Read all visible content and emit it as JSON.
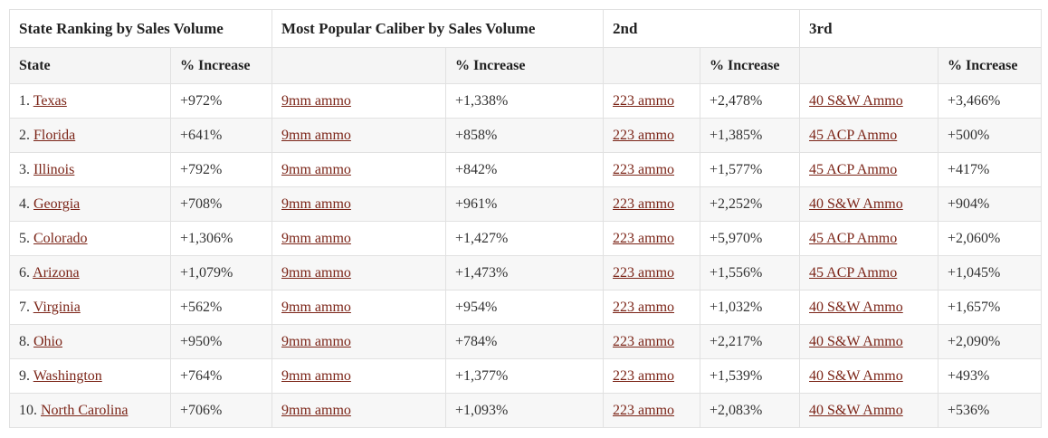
{
  "chart_data": {
    "type": "table",
    "group_headers": [
      {
        "label": "State Ranking by Sales Volume",
        "span": 2
      },
      {
        "label": "Most Popular Caliber by Sales Volume",
        "span": 2
      },
      {
        "label": "2nd",
        "span": 2
      },
      {
        "label": "3rd",
        "span": 2
      }
    ],
    "sub_headers": [
      "State",
      "% Increase",
      "",
      "% Increase",
      "",
      "% Increase",
      "",
      "% Increase"
    ],
    "rows": [
      {
        "rank": "1.",
        "state": "Texas",
        "state_increase": "+972%",
        "caliber1": "9mm ammo",
        "caliber1_increase": "+1,338%",
        "caliber2": "223 ammo",
        "caliber2_increase": "+2,478%",
        "caliber3": "40 S&W Ammo",
        "caliber3_increase": "+3,466%"
      },
      {
        "rank": "2.",
        "state": "Florida",
        "state_increase": "+641%",
        "caliber1": "9mm ammo",
        "caliber1_increase": "+858%",
        "caliber2": "223 ammo",
        "caliber2_increase": "+1,385%",
        "caliber3": "45 ACP Ammo",
        "caliber3_increase": "+500%"
      },
      {
        "rank": "3.",
        "state": "Illinois",
        "state_increase": "+792%",
        "caliber1": "9mm ammo",
        "caliber1_increase": "+842%",
        "caliber2": "223 ammo",
        "caliber2_increase": "+1,577%",
        "caliber3": "45 ACP Ammo",
        "caliber3_increase": "+417%"
      },
      {
        "rank": "4.",
        "state": "Georgia",
        "state_increase": "+708%",
        "caliber1": "9mm ammo",
        "caliber1_increase": "+961%",
        "caliber2": "223 ammo",
        "caliber2_increase": "+2,252%",
        "caliber3": "40 S&W Ammo",
        "caliber3_increase": "+904%"
      },
      {
        "rank": "5.",
        "state": "Colorado",
        "state_increase": "+1,306%",
        "caliber1": "9mm ammo",
        "caliber1_increase": "+1,427%",
        "caliber2": "223 ammo",
        "caliber2_increase": "+5,970%",
        "caliber3": "45 ACP Ammo",
        "caliber3_increase": "+2,060%"
      },
      {
        "rank": "6.",
        "state": "Arizona",
        "state_increase": "+1,079%",
        "caliber1": "9mm ammo",
        "caliber1_increase": "+1,473%",
        "caliber2": "223 ammo",
        "caliber2_increase": "+1,556%",
        "caliber3": "45 ACP Ammo",
        "caliber3_increase": "+1,045%"
      },
      {
        "rank": "7.",
        "state": "Virginia",
        "state_increase": "+562%",
        "caliber1": "9mm ammo",
        "caliber1_increase": "+954%",
        "caliber2": "223 ammo",
        "caliber2_increase": "+1,032%",
        "caliber3": "40 S&W Ammo",
        "caliber3_increase": "+1,657%"
      },
      {
        "rank": "8.",
        "state": "Ohio",
        "state_increase": "+950%",
        "caliber1": "9mm ammo",
        "caliber1_increase": "+784%",
        "caliber2": "223 ammo",
        "caliber2_increase": "+2,217%",
        "caliber3": "40 S&W Ammo",
        "caliber3_increase": "+2,090%"
      },
      {
        "rank": "9.",
        "state": "Washington",
        "state_increase": "+764%",
        "caliber1": "9mm ammo",
        "caliber1_increase": "+1,377%",
        "caliber2": "223 ammo",
        "caliber2_increase": "+1,539%",
        "caliber3": "40 S&W Ammo",
        "caliber3_increase": "+493%"
      },
      {
        "rank": "10.",
        "state": "North Carolina",
        "state_increase": "+706%",
        "caliber1": "9mm ammo",
        "caliber1_increase": "+1,093%",
        "caliber2": "223 ammo",
        "caliber2_increase": "+2,083%",
        "caliber3": "40 S&W Ammo",
        "caliber3_increase": "+536%"
      }
    ]
  },
  "colors": {
    "link": "#7b2417",
    "text": "#333333",
    "header_text": "#222222",
    "border": "#e1e1e1",
    "alt_row_bg": "#f7f7f7",
    "sub_header_bg": "#f5f5f5"
  }
}
